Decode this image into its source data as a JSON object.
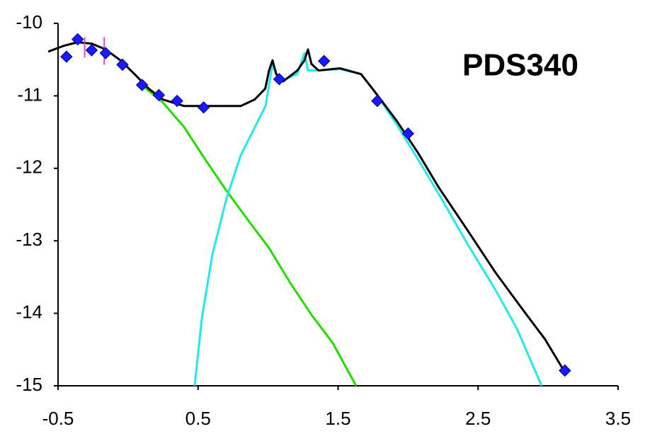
{
  "chart_data": {
    "type": "line",
    "title": "PDS340",
    "xlim": [
      -0.5,
      3.5
    ],
    "xticks": [
      -0.5,
      0.5,
      1.5,
      2.5,
      3.5
    ],
    "ylim": [
      -15,
      -10
    ],
    "yticks": [
      -10,
      -11,
      -12,
      -13,
      -14,
      -15
    ],
    "grid": false,
    "series": [
      {
        "type": "line",
        "color": "#22dd00",
        "x": [
          0.097,
          0.248,
          0.4,
          0.552,
          0.703,
          0.855,
          1.007,
          1.158,
          1.31,
          1.462,
          1.629
        ],
        "values": [
          -10.85,
          -11.09,
          -11.43,
          -11.88,
          -12.31,
          -12.71,
          -13.1,
          -13.58,
          -14.02,
          -14.41,
          -15.0
        ]
      },
      {
        "type": "line",
        "color": "#22e8f0",
        "x": [
          0.476,
          0.527,
          0.602,
          0.704,
          0.805,
          0.906,
          0.982,
          1.032,
          1.083,
          1.209,
          1.26,
          1.285,
          1.361,
          1.513,
          1.664,
          1.765,
          1.917,
          2.069,
          2.221,
          2.423,
          2.625,
          2.777,
          2.954
        ],
        "values": [
          -15.0,
          -14.07,
          -13.19,
          -12.41,
          -11.82,
          -11.43,
          -11.14,
          -10.56,
          -10.8,
          -10.7,
          -10.41,
          -10.65,
          -10.65,
          -10.63,
          -10.7,
          -10.95,
          -11.39,
          -11.87,
          -12.36,
          -13.04,
          -13.68,
          -14.21,
          -15.0
        ]
      },
      {
        "type": "line",
        "color": "#000000",
        "x": [
          -0.57,
          -0.46,
          -0.36,
          -0.26,
          -0.16,
          -0.055,
          0.046,
          0.147,
          0.248,
          0.4,
          0.552,
          0.805,
          0.905,
          0.98,
          1.007,
          1.032,
          1.058,
          1.108,
          1.209,
          1.26,
          1.285,
          1.31,
          1.361,
          1.513,
          1.664,
          1.765,
          1.917,
          2.069,
          2.221,
          2.423,
          2.625,
          2.827,
          2.979,
          3.131
        ],
        "values": [
          -10.39,
          -10.31,
          -10.26,
          -10.28,
          -10.36,
          -10.51,
          -10.7,
          -10.9,
          -11.05,
          -11.14,
          -11.14,
          -11.14,
          -11.05,
          -10.9,
          -10.65,
          -10.51,
          -10.7,
          -10.8,
          -10.65,
          -10.51,
          -10.36,
          -10.56,
          -10.65,
          -10.62,
          -10.7,
          -10.95,
          -11.34,
          -11.78,
          -12.27,
          -12.85,
          -13.44,
          -13.97,
          -14.36,
          -14.85
        ]
      },
      {
        "type": "errorbar",
        "color": "#e040e0",
        "x": [
          -0.31,
          -0.17
        ],
        "values": [
          -10.33,
          -10.38
        ],
        "errors": [
          0.14,
          0.19
        ]
      },
      {
        "type": "scatter",
        "color": "#1a1aff",
        "x": [
          -0.44,
          -0.36,
          -0.26,
          -0.16,
          -0.04,
          0.1,
          0.22,
          0.35,
          0.54,
          1.08,
          1.4,
          1.78,
          2.0,
          3.12
        ],
        "values": [
          -10.46,
          -10.22,
          -10.37,
          -10.41,
          -10.57,
          -10.85,
          -10.99,
          -11.07,
          -11.16,
          -10.77,
          -10.52,
          -11.07,
          -11.52,
          -14.79
        ]
      }
    ]
  }
}
